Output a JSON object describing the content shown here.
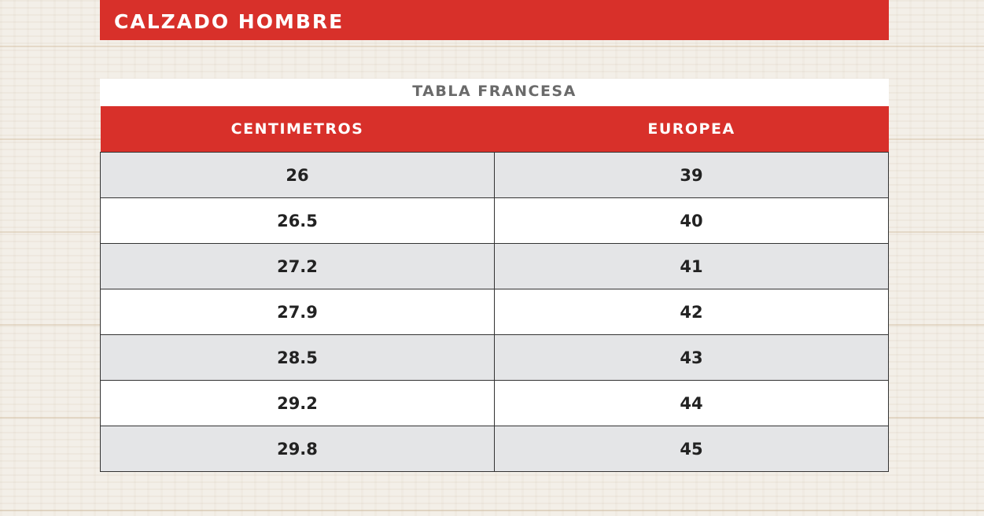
{
  "title": "CALZADO HOMBRE",
  "subtitle": "TABLA FRANCESA",
  "colors": {
    "accent": "#d8302a",
    "row_alt": "#e4e5e7"
  },
  "table": {
    "headers": [
      "CENTIMETROS",
      "EUROPEA"
    ],
    "rows": [
      [
        "26",
        "39"
      ],
      [
        "26.5",
        "40"
      ],
      [
        "27.2",
        "41"
      ],
      [
        "27.9",
        "42"
      ],
      [
        "28.5",
        "43"
      ],
      [
        "29.2",
        "44"
      ],
      [
        "29.8",
        "45"
      ]
    ]
  }
}
